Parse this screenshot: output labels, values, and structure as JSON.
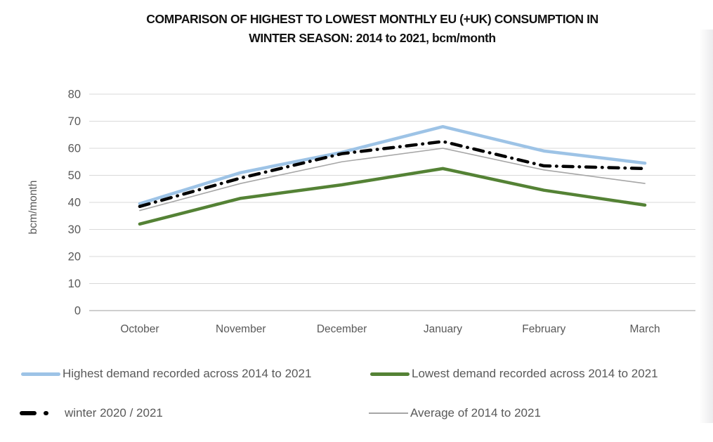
{
  "title": {
    "line1": "COMPARISON OF HIGHEST TO LOWEST MONTHLY EU (+UK) CONSUMPTION IN",
    "line2": "WINTER SEASON: 2014 to 2021, bcm/month"
  },
  "chart_data": {
    "type": "line",
    "categories": [
      "October",
      "November",
      "December",
      "January",
      "February",
      "March"
    ],
    "series": [
      {
        "name": "Highest demand recorded across 2014 to 2021",
        "values": [
          39.5,
          51,
          58.5,
          68,
          59,
          54.5
        ],
        "color": "#9DC3E6",
        "style": "solid-thick"
      },
      {
        "name": "Lowest demand recorded across  2014 to 2021",
        "values": [
          32,
          41.5,
          46.5,
          52.5,
          44.5,
          39
        ],
        "color": "#548235",
        "style": "solid-thick"
      },
      {
        "name": "winter 2020 / 2021",
        "values": [
          38.5,
          49,
          58,
          62.5,
          53.5,
          52.5
        ],
        "color": "#000000",
        "style": "dash-dot"
      },
      {
        "name": "Average of 2014 to 2021",
        "values": [
          37,
          47,
          55,
          60,
          52,
          47
        ],
        "color": "#A6A6A6",
        "style": "solid-thin"
      }
    ],
    "title": "COMPARISON OF HIGHEST TO LOWEST MONTHLY EU (+UK) CONSUMPTION IN WINTER SEASON: 2014 to 2021, bcm/month",
    "xlabel": "",
    "ylabel": "bcm/month",
    "ylim": [
      0,
      80
    ],
    "yticks": [
      0,
      10,
      20,
      30,
      40,
      50,
      60,
      70,
      80
    ],
    "grid": true,
    "legend_position": "bottom",
    "colors": {
      "gridline": "#D9D9D9",
      "axis_line": "#BFBFBF",
      "tick_text": "#595959",
      "legend_text": "#595959",
      "title_text": "#111111"
    }
  }
}
